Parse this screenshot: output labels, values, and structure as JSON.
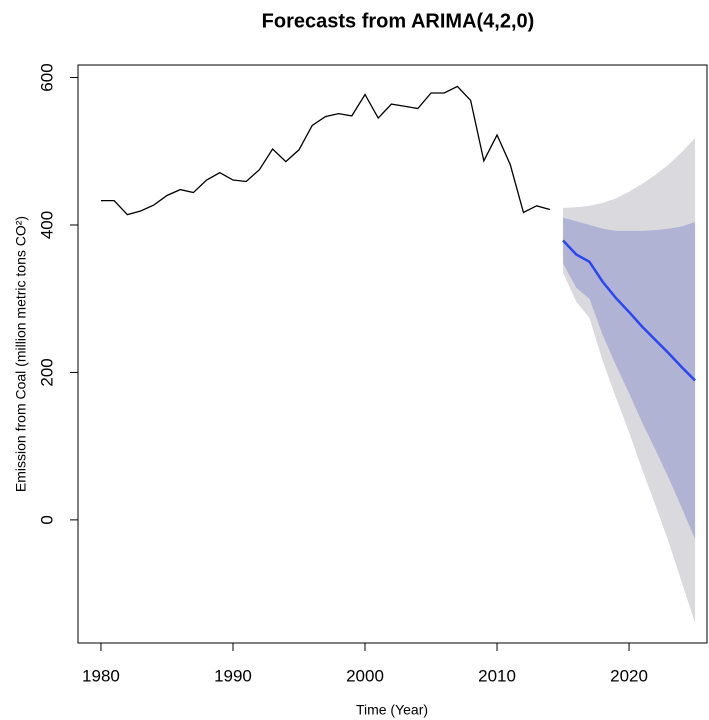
{
  "chart_data": {
    "type": "forecast",
    "title": "Forecasts from ARIMA(4,2,0)",
    "x_label": "Time (Year)",
    "y_label": "Emission from Coal (million metric tons CO²)",
    "xlim": [
      1978.26,
      2025.98
    ],
    "ylim": [
      -167,
      617
    ],
    "xticks": [
      1980,
      1990,
      2000,
      2010,
      2020
    ],
    "yticks": [
      0,
      200,
      400,
      600
    ],
    "history": {
      "color": "#000000",
      "x": [
        1980,
        1981,
        1982,
        1983,
        1984,
        1985,
        1986,
        1987,
        1988,
        1989,
        1990,
        1991,
        1992,
        1993,
        1994,
        1995,
        1996,
        1997,
        1998,
        1999,
        2000,
        2001,
        2002,
        2003,
        2004,
        2005,
        2006,
        2007,
        2008,
        2009,
        2010,
        2011,
        2012,
        2013,
        2014
      ],
      "values": [
        433,
        433,
        414,
        419,
        427,
        440,
        448,
        444,
        461,
        471,
        461,
        459,
        475,
        503,
        486,
        502,
        535,
        547,
        551,
        548,
        577,
        545,
        564,
        561,
        558,
        579,
        579,
        588,
        569,
        487,
        522,
        482,
        417,
        426,
        421
      ]
    },
    "forecast": {
      "color": "#2b46f0",
      "band80_color": "#b0b3d4",
      "band95_color": "#d9d9de",
      "x": [
        2015,
        2016,
        2017,
        2018,
        2019,
        2020,
        2021,
        2022,
        2023,
        2024,
        2025
      ],
      "mean": [
        379,
        360,
        350,
        323,
        301,
        282,
        262,
        244,
        226,
        207,
        189
      ],
      "hi80": [
        410,
        405,
        400,
        395,
        392,
        392,
        392,
        393,
        395,
        398,
        404
      ],
      "lo80": [
        348,
        315,
        300,
        251,
        210,
        172,
        132,
        95,
        57,
        16,
        -26
      ],
      "hi95": [
        423,
        424,
        426,
        430,
        436,
        445,
        456,
        468,
        482,
        499,
        518
      ],
      "lo95": [
        335,
        296,
        274,
        216,
        166,
        119,
        68,
        20,
        -30,
        -85,
        -140
      ]
    }
  }
}
